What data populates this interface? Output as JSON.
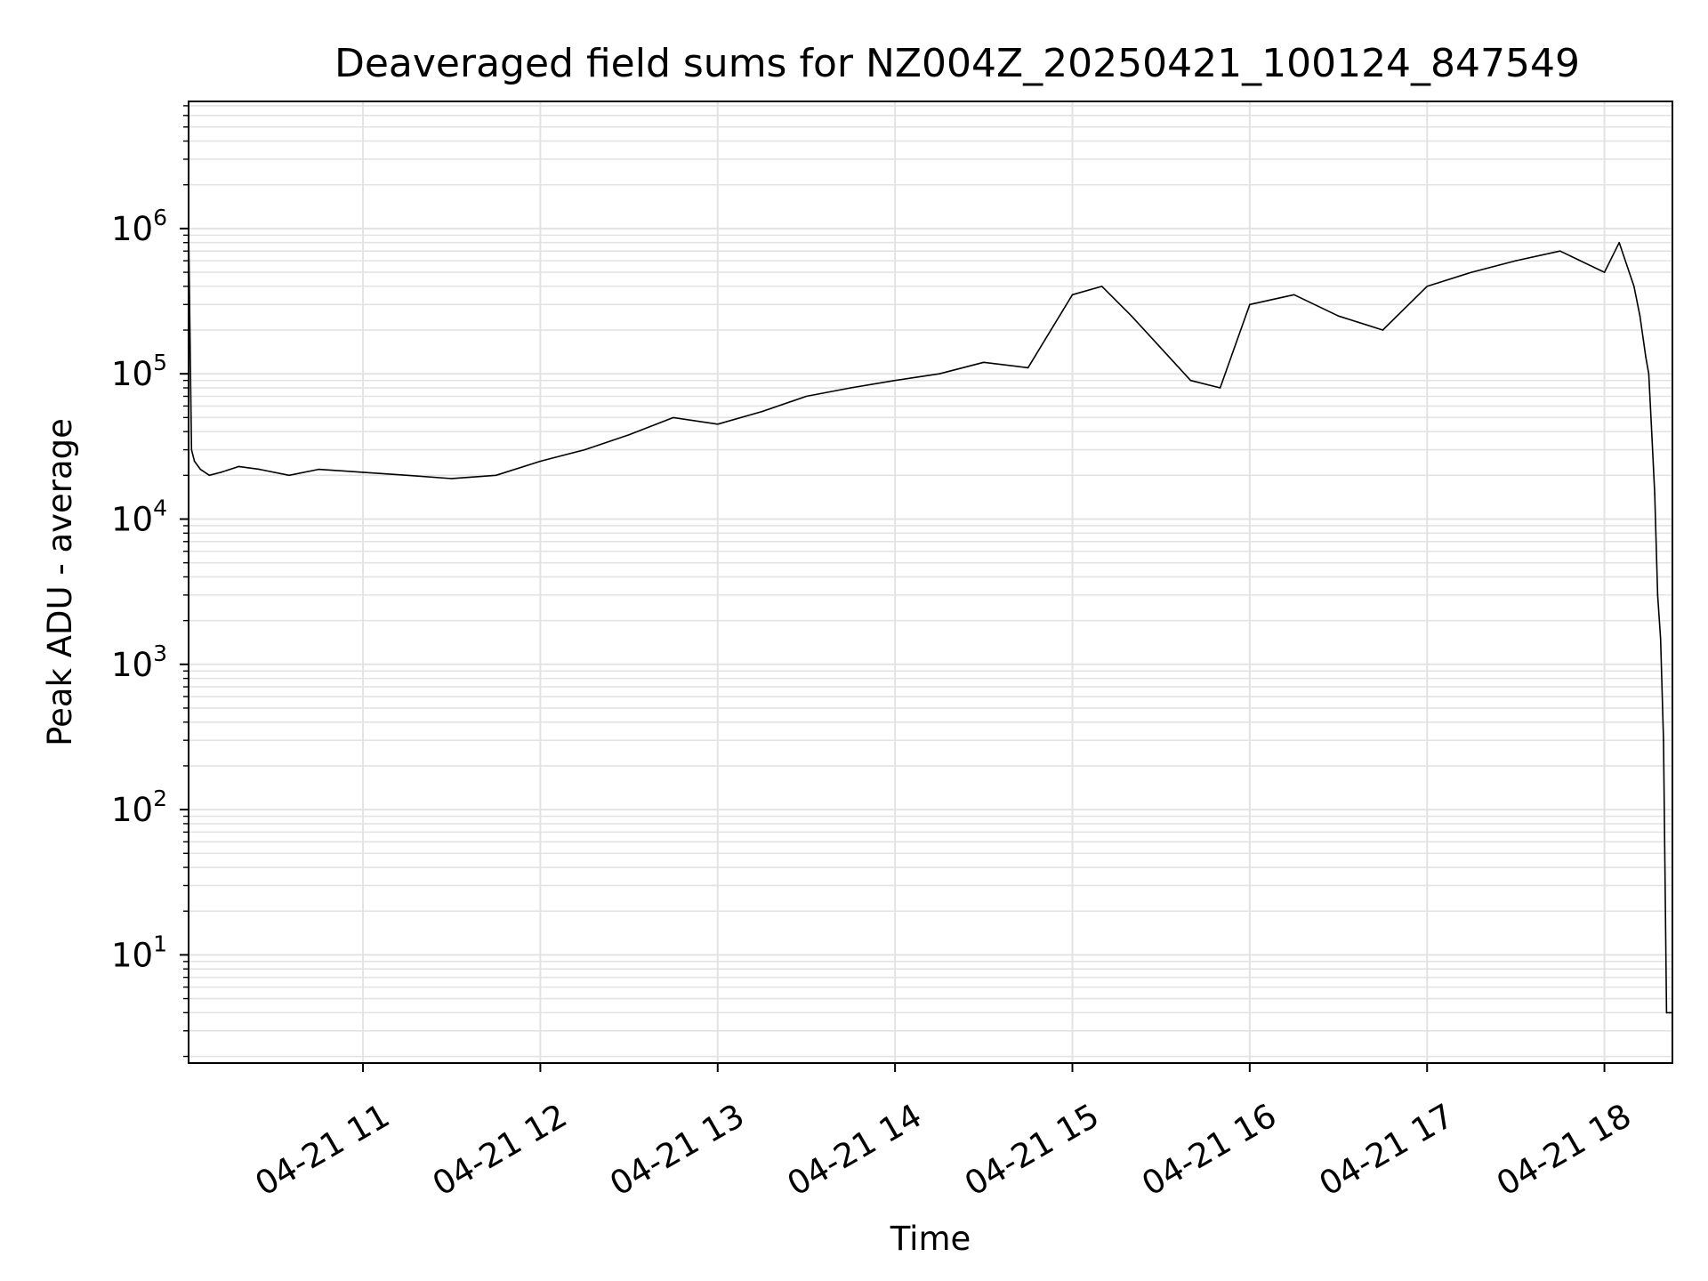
{
  "chart_data": {
    "type": "line",
    "title": "Deaveraged field sums for NZ004Z_20250421_100124_847549",
    "xlabel": "Time",
    "ylabel": "Peak ADU - average",
    "yscale": "log",
    "grid": true,
    "line_color": "#000000",
    "grid_color": "#e3e3e3",
    "xlim": [
      "2025-04-21 10:01",
      "2025-04-21 18:23"
    ],
    "ylim": [
      1.8,
      7500000
    ],
    "x_ticks": [
      {
        "value": "2025-04-21 11:00",
        "label": "04-21 11"
      },
      {
        "value": "2025-04-21 12:00",
        "label": "04-21 12"
      },
      {
        "value": "2025-04-21 13:00",
        "label": "04-21 13"
      },
      {
        "value": "2025-04-21 14:00",
        "label": "04-21 14"
      },
      {
        "value": "2025-04-21 15:00",
        "label": "04-21 15"
      },
      {
        "value": "2025-04-21 16:00",
        "label": "04-21 16"
      },
      {
        "value": "2025-04-21 17:00",
        "label": "04-21 17"
      },
      {
        "value": "2025-04-21 18:00",
        "label": "04-21 18"
      }
    ],
    "y_ticks": [
      {
        "value": 10,
        "base": "10",
        "exp": "1"
      },
      {
        "value": 100,
        "base": "10",
        "exp": "2"
      },
      {
        "value": 1000,
        "base": "10",
        "exp": "3"
      },
      {
        "value": 10000,
        "base": "10",
        "exp": "4"
      },
      {
        "value": 100000,
        "base": "10",
        "exp": "5"
      },
      {
        "value": 1000000,
        "base": "10",
        "exp": "6"
      }
    ],
    "series": [
      {
        "x": [
          "2025-04-21 10:01",
          "2025-04-21 10:02",
          "2025-04-21 10:03",
          "2025-04-21 10:05",
          "2025-04-21 10:08",
          "2025-04-21 10:12",
          "2025-04-21 10:18",
          "2025-04-21 10:25",
          "2025-04-21 10:35",
          "2025-04-21 10:45",
          "2025-04-21 11:00",
          "2025-04-21 11:15",
          "2025-04-21 11:30",
          "2025-04-21 11:45",
          "2025-04-21 12:00",
          "2025-04-21 12:15",
          "2025-04-21 12:30",
          "2025-04-21 12:45",
          "2025-04-21 13:00",
          "2025-04-21 13:15",
          "2025-04-21 13:30",
          "2025-04-21 13:45",
          "2025-04-21 14:00",
          "2025-04-21 14:15",
          "2025-04-21 14:30",
          "2025-04-21 14:45",
          "2025-04-21 15:00",
          "2025-04-21 15:10",
          "2025-04-21 15:20",
          "2025-04-21 15:30",
          "2025-04-21 15:40",
          "2025-04-21 15:50",
          "2025-04-21 16:00",
          "2025-04-21 16:15",
          "2025-04-21 16:30",
          "2025-04-21 16:45",
          "2025-04-21 17:00",
          "2025-04-21 17:15",
          "2025-04-21 17:30",
          "2025-04-21 17:45",
          "2025-04-21 18:00",
          "2025-04-21 18:05",
          "2025-04-21 18:10",
          "2025-04-21 18:12",
          "2025-04-21 18:14",
          "2025-04-21 18:15",
          "2025-04-21 18:16",
          "2025-04-21 18:17",
          "2025-04-21 18:18",
          "2025-04-21 18:19",
          "2025-04-21 18:20",
          "2025-04-21 18:21",
          "2025-04-21 18:22",
          "2025-04-21 18:23"
        ],
        "values": [
          1000000,
          30000,
          25000,
          22000,
          20000,
          21000,
          23000,
          22000,
          20000,
          22000,
          21000,
          20000,
          19000,
          20000,
          25000,
          30000,
          38000,
          50000,
          45000,
          55000,
          70000,
          80000,
          90000,
          100000,
          120000,
          110000,
          350000,
          400000,
          250000,
          150000,
          90000,
          80000,
          300000,
          350000,
          250000,
          200000,
          400000,
          500000,
          600000,
          700000,
          500000,
          800000,
          400000,
          250000,
          130000,
          100000,
          40000,
          15000,
          3000,
          1500,
          300,
          4,
          4,
          4
        ]
      }
    ]
  }
}
